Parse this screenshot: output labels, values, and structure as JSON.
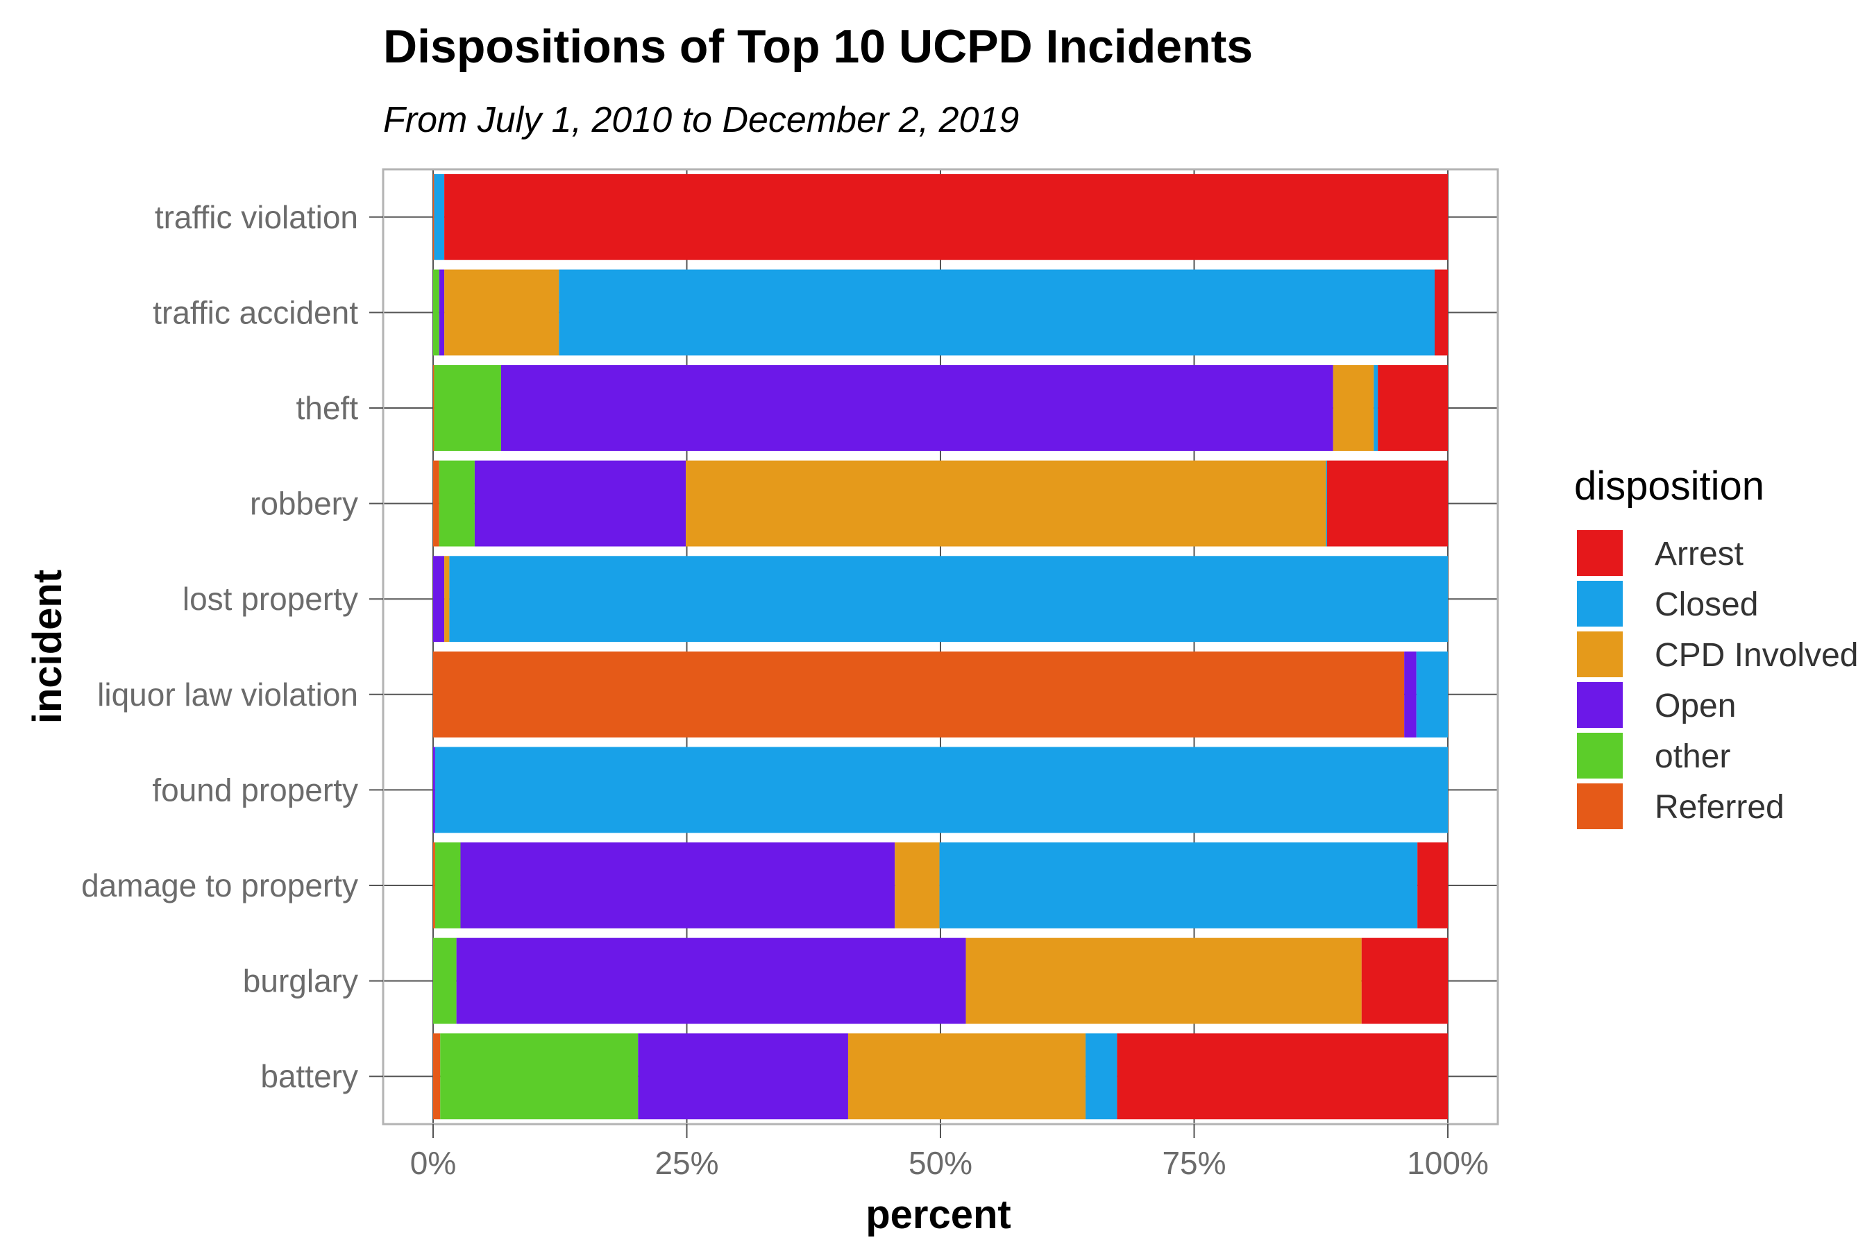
{
  "chart_data": {
    "type": "bar",
    "orientation": "horizontal",
    "stacked": "percent",
    "title": "Dispositions of Top 10 UCPD Incidents",
    "subtitle": "From July 1, 2010 to December 2, 2019",
    "xlabel": "percent",
    "ylabel": "incident",
    "xlim": [
      0,
      1
    ],
    "x_ticks": [
      0,
      0.25,
      0.5,
      0.75,
      1.0
    ],
    "x_tick_labels": [
      "0%",
      "25%",
      "50%",
      "75%",
      "100%"
    ],
    "grid": true,
    "legend_position": "right",
    "legend_title": "disposition",
    "categories": [
      "traffic violation",
      "traffic accident",
      "theft",
      "robbery",
      "lost property",
      "liquor law violation",
      "found property",
      "damage to property",
      "burglary",
      "battery"
    ],
    "stack_order": [
      "Referred",
      "other",
      "Open",
      "CPD Involved",
      "Closed",
      "Arrest"
    ],
    "legend_order": [
      "Arrest",
      "Closed",
      "CPD Involved",
      "Open",
      "other",
      "Referred"
    ],
    "colors": {
      "Arrest": "#e5181b",
      "Closed": "#18a1e8",
      "CPD Involved": "#e59a1b",
      "Open": "#6c18e8",
      "other": "#5ccd2a",
      "Referred": "#e55a18"
    },
    "series": [
      {
        "name": "Referred",
        "values": [
          0.001,
          0.0,
          0.001,
          0.006,
          0.0,
          0.957,
          0.0,
          0.002,
          0.0,
          0.007
        ]
      },
      {
        "name": "other",
        "values": [
          0.0,
          0.006,
          0.066,
          0.035,
          0.0,
          0.0,
          0.0,
          0.025,
          0.023,
          0.195
        ]
      },
      {
        "name": "Open",
        "values": [
          0.0,
          0.005,
          0.82,
          0.208,
          0.011,
          0.012,
          0.002,
          0.428,
          0.502,
          0.207
        ]
      },
      {
        "name": "CPD Involved",
        "values": [
          0.0,
          0.113,
          0.04,
          0.631,
          0.005,
          0.0,
          0.0,
          0.044,
          0.39,
          0.234
        ]
      },
      {
        "name": "Closed",
        "values": [
          0.01,
          0.863,
          0.004,
          0.001,
          0.984,
          0.031,
          0.998,
          0.471,
          0.0,
          0.031
        ]
      },
      {
        "name": "Arrest",
        "values": [
          0.989,
          0.013,
          0.069,
          0.119,
          0.0,
          0.0,
          0.0,
          0.03,
          0.085,
          0.326
        ]
      }
    ]
  }
}
